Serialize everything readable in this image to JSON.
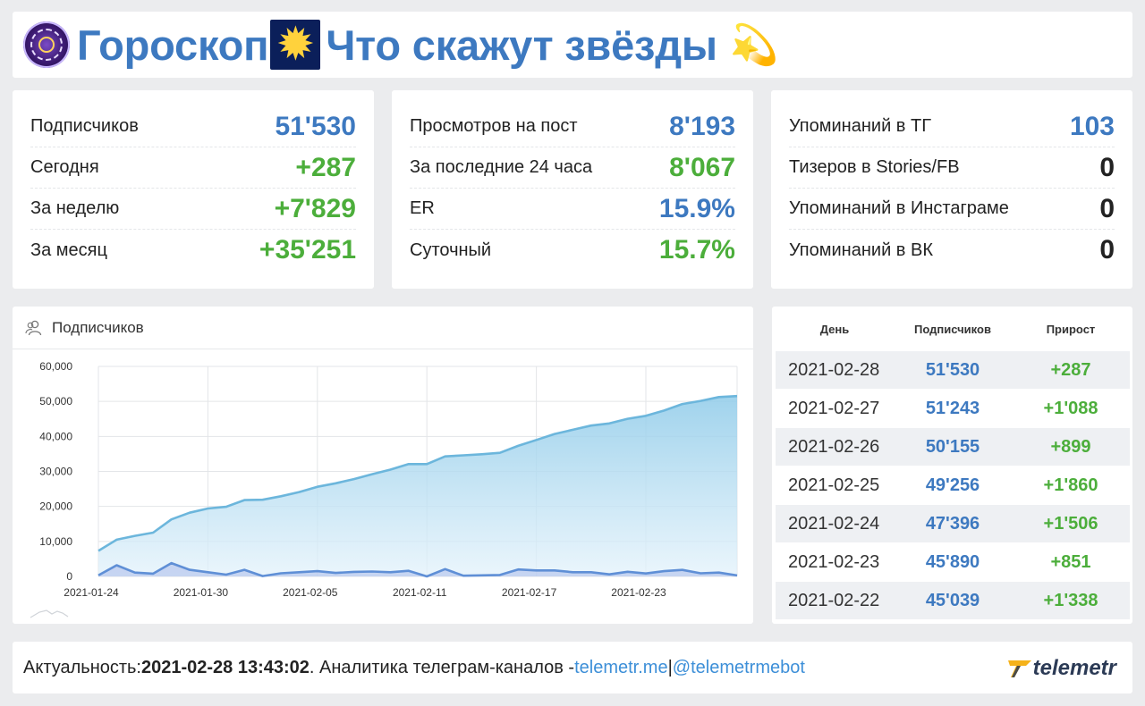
{
  "header": {
    "title": "Гороскоп",
    "title_rest": "Что скажут звёзды",
    "sparkle_glyph": "✹",
    "dizzy_glyph": "💫"
  },
  "stats": [
    {
      "rows": [
        {
          "label": "Подписчиков",
          "value": "51'530",
          "color": "blue"
        },
        {
          "label": "Сегодня",
          "value": "+287",
          "color": "green"
        },
        {
          "label": "За неделю",
          "value": "+7'829",
          "color": "green"
        },
        {
          "label": "За месяц",
          "value": "+35'251",
          "color": "green"
        }
      ]
    },
    {
      "rows": [
        {
          "label": "Просмотров на пост",
          "value": "8'193",
          "color": "blue"
        },
        {
          "label": "За последние 24 часа",
          "value": "8'067",
          "color": "green"
        },
        {
          "label": "ER",
          "value": "15.9%",
          "color": "blue"
        },
        {
          "label": "Суточный",
          "value": "15.7%",
          "color": "green"
        }
      ]
    },
    {
      "rows": [
        {
          "label": "Упоминаний в ТГ",
          "value": "103",
          "color": "blue"
        },
        {
          "label": "Тизеров в Stories/FB",
          "value": "0",
          "color": "dark"
        },
        {
          "label": "Упоминаний в Инстаграме",
          "value": "0",
          "color": "dark"
        },
        {
          "label": "Упоминаний в ВК",
          "value": "0",
          "color": "dark"
        }
      ]
    }
  ],
  "chart_panel": {
    "title": "Подписчиков",
    "icon": "users-icon"
  },
  "chart_data": {
    "type": "area",
    "xlabel": "",
    "ylabel": "",
    "ylim": [
      0,
      60000
    ],
    "yticks": [
      "0",
      "10,000",
      "20,000",
      "30,000",
      "40,000",
      "50,000",
      "60,000"
    ],
    "xtick_labels": [
      "2021-01-24",
      "2021-01-30",
      "2021-02-05",
      "2021-02-11",
      "2021-02-17",
      "2021-02-23"
    ],
    "x": [
      "2021-01-24",
      "2021-01-25",
      "2021-01-26",
      "2021-01-27",
      "2021-01-28",
      "2021-01-29",
      "2021-01-30",
      "2021-01-31",
      "2021-02-01",
      "2021-02-02",
      "2021-02-03",
      "2021-02-04",
      "2021-02-05",
      "2021-02-06",
      "2021-02-07",
      "2021-02-08",
      "2021-02-09",
      "2021-02-10",
      "2021-02-11",
      "2021-02-12",
      "2021-02-13",
      "2021-02-14",
      "2021-02-15",
      "2021-02-16",
      "2021-02-17",
      "2021-02-18",
      "2021-02-19",
      "2021-02-20",
      "2021-02-21",
      "2021-02-22",
      "2021-02-23",
      "2021-02-24",
      "2021-02-25",
      "2021-02-26",
      "2021-02-27",
      "2021-02-28"
    ],
    "series": [
      {
        "values": [
          7300,
          10500,
          11600,
          12500,
          16300,
          18200,
          19400,
          19900,
          21800,
          21900,
          22900,
          24100,
          25600,
          26600,
          27800,
          29200,
          30500,
          32100,
          32100,
          34300,
          34600,
          34900,
          35300,
          37300,
          39000,
          40700,
          41900,
          43100,
          43700,
          45039,
          45890,
          47396,
          49256,
          50155,
          51243,
          51530
        ],
        "color": "#6cb6dc"
      },
      {
        "values": [
          300,
          3200,
          1100,
          800,
          3800,
          1900,
          1200,
          500,
          1900,
          100,
          900,
          1200,
          1500,
          1000,
          1300,
          1400,
          1200,
          1600,
          0,
          2100,
          200,
          300,
          400,
          2000,
          1700,
          1700,
          1200,
          1200,
          600,
          1338,
          851,
          1506,
          1860,
          899,
          1088,
          287
        ],
        "color": "#5f8fd6"
      }
    ]
  },
  "table": {
    "headers": [
      "День",
      "Подписчиков",
      "Прирост"
    ],
    "rows": [
      {
        "date": "2021-02-28",
        "subs": "51'530",
        "delta": "+287"
      },
      {
        "date": "2021-02-27",
        "subs": "51'243",
        "delta": "+1'088"
      },
      {
        "date": "2021-02-26",
        "subs": "50'155",
        "delta": "+899"
      },
      {
        "date": "2021-02-25",
        "subs": "49'256",
        "delta": "+1'860"
      },
      {
        "date": "2021-02-24",
        "subs": "47'396",
        "delta": "+1'506"
      },
      {
        "date": "2021-02-23",
        "subs": "45'890",
        "delta": "+851"
      },
      {
        "date": "2021-02-22",
        "subs": "45'039",
        "delta": "+1'338"
      }
    ]
  },
  "footer": {
    "prefix": "Актуальность: ",
    "timestamp": "2021-02-28 13:43:02",
    "middle": ". Аналитика телеграм-каналов - ",
    "link1": "telemetr.me",
    "sep": " | ",
    "link2": "@telemetrmebot",
    "brand": "telemetr"
  }
}
